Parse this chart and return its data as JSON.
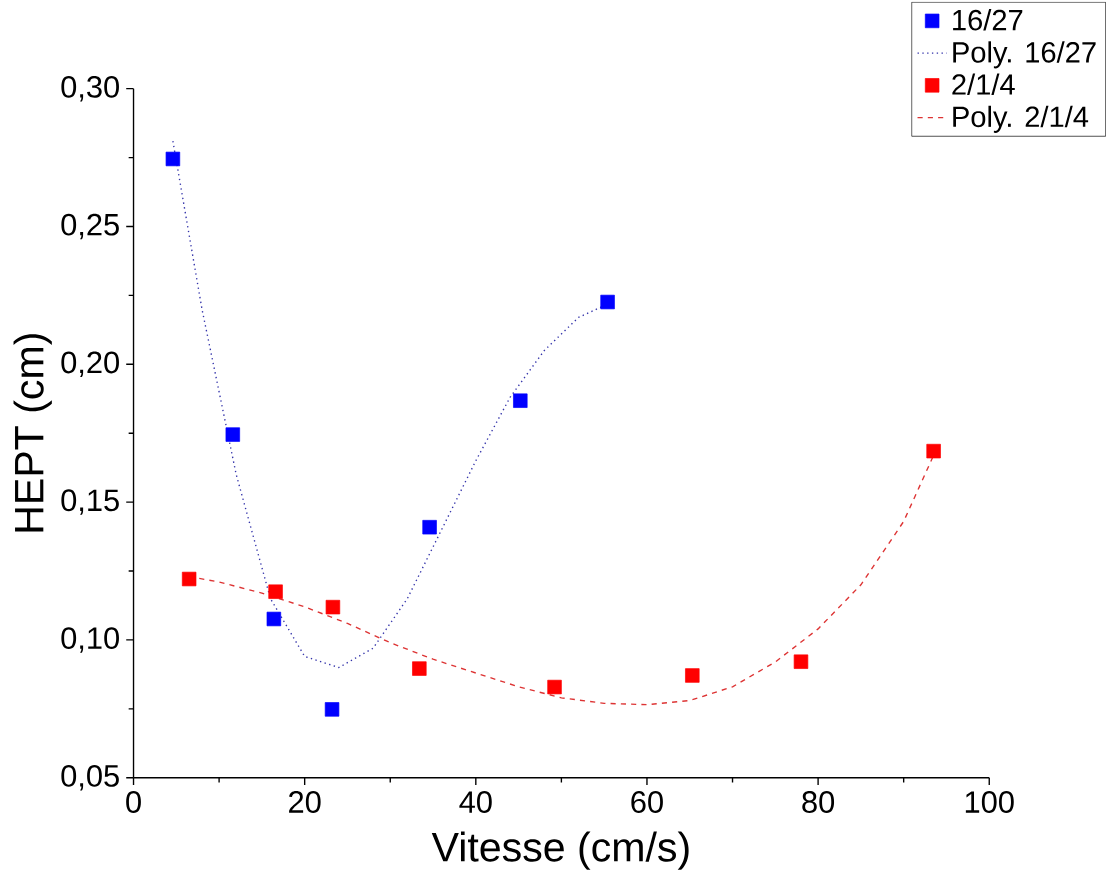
{
  "chart_data": {
    "type": "scatter",
    "xlabel": "Vitesse (cm/s)",
    "ylabel": "HEPT (cm)",
    "xlim": [
      0,
      100
    ],
    "ylim": [
      0.05,
      0.3
    ],
    "xticks": [
      0,
      20,
      40,
      60,
      80,
      100
    ],
    "yticks": [
      {
        "value": 0.05,
        "label": "0,05"
      },
      {
        "value": 0.1,
        "label": "0,10"
      },
      {
        "value": 0.15,
        "label": "0,15"
      },
      {
        "value": 0.2,
        "label": "0,20"
      },
      {
        "value": 0.25,
        "label": "0,25"
      },
      {
        "value": 0.3,
        "label": "0,30"
      }
    ],
    "legend": "top right",
    "grid": false,
    "series": [
      {
        "name": "16/27",
        "marker": "square",
        "color": "#0000ff",
        "x": [
          4.6,
          11.6,
          16.4,
          23.2,
          34.6,
          45.2,
          55.4
        ],
        "values": [
          0.2745,
          0.1745,
          0.1076,
          0.0748,
          0.1409,
          0.1868,
          0.2226
        ]
      },
      {
        "name": "Poly. 16/27",
        "type": "line",
        "marker": "none",
        "line_style": "dotted",
        "color": "#3333aa",
        "x": [
          4.6,
          8,
          12,
          16,
          20,
          24,
          28,
          32,
          36,
          40,
          44,
          48,
          52,
          55.5
        ],
        "values": [
          0.281,
          0.22,
          0.16,
          0.115,
          0.094,
          0.09,
          0.097,
          0.115,
          0.14,
          0.165,
          0.188,
          0.205,
          0.217,
          0.222
        ]
      },
      {
        "name": "2/1/4",
        "marker": "square",
        "color": "#ff0000",
        "x": [
          6.5,
          16.6,
          23.3,
          33.4,
          49.2,
          65.3,
          78.0,
          93.5
        ],
        "values": [
          0.1221,
          0.1175,
          0.1119,
          0.0896,
          0.0829,
          0.0871,
          0.0921,
          0.1685
        ]
      },
      {
        "name": "Poly. 2/1/4",
        "type": "line",
        "marker": "none",
        "line_style": "dashed",
        "color": "#dd3333",
        "x": [
          6.5,
          10,
          15,
          20,
          25,
          30,
          35,
          40,
          45,
          50,
          55,
          60,
          65,
          70,
          75,
          80,
          85,
          90,
          93.5
        ],
        "values": [
          0.123,
          0.121,
          0.117,
          0.112,
          0.106,
          0.099,
          0.093,
          0.088,
          0.083,
          0.079,
          0.077,
          0.0765,
          0.078,
          0.083,
          0.092,
          0.104,
          0.12,
          0.143,
          0.167
        ]
      }
    ]
  }
}
